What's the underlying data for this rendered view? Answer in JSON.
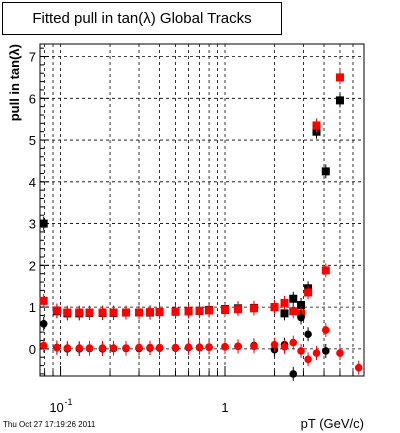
{
  "title": "Fitted pull in tan(λ)  Global Tracks",
  "timestamp": "Thu Oct 27 17:19:26 2011",
  "chart_data": {
    "type": "scatter",
    "x_scale": "log",
    "xlim": [
      0.075,
      7.0
    ],
    "ylim": [
      -0.65,
      7.3
    ],
    "xlabel": "pT (GeV/c)",
    "ylabel": "pull in tan(λ)",
    "grid": true,
    "x_tick_labels": [
      {
        "value": 0.1,
        "label": "10",
        "exp": "-1"
      },
      {
        "value": 1,
        "label": "1",
        "exp": ""
      }
    ],
    "y_ticks": [
      0,
      1,
      2,
      3,
      4,
      5,
      6,
      7
    ],
    "x_grid_values": [
      0.08,
      0.09,
      0.1,
      0.2,
      0.3,
      0.4,
      0.5,
      0.6,
      0.7,
      0.8,
      0.9,
      1,
      2,
      3,
      4,
      5,
      6
    ],
    "colors": {
      "black": "#000000",
      "red": "#ff0000"
    },
    "series": [
      {
        "color": "#000000",
        "marker": "square",
        "points": [
          [
            0.079,
            3.0
          ],
          [
            0.095,
            0.9
          ],
          [
            0.11,
            0.85
          ],
          [
            0.13,
            0.85
          ],
          [
            0.15,
            0.86
          ],
          [
            0.18,
            0.86
          ],
          [
            0.21,
            0.86
          ],
          [
            0.25,
            0.87
          ],
          [
            0.3,
            0.87
          ],
          [
            0.35,
            0.87
          ],
          [
            0.4,
            0.88
          ],
          [
            0.5,
            0.89
          ],
          [
            0.6,
            0.9
          ],
          [
            0.7,
            0.91
          ],
          [
            0.8,
            0.93
          ],
          [
            1.0,
            0.95
          ],
          [
            1.2,
            0.97
          ],
          [
            1.5,
            0.98
          ],
          [
            2.0,
            1.0
          ],
          [
            2.3,
            0.85
          ],
          [
            2.6,
            1.2
          ],
          [
            2.9,
            1.05
          ],
          [
            3.2,
            1.45
          ],
          [
            3.6,
            5.2
          ],
          [
            4.1,
            4.25
          ],
          [
            5.0,
            5.95
          ]
        ]
      },
      {
        "color": "#ff0000",
        "marker": "square",
        "points": [
          [
            0.079,
            1.15
          ],
          [
            0.095,
            0.92
          ],
          [
            0.11,
            0.87
          ],
          [
            0.13,
            0.87
          ],
          [
            0.15,
            0.87
          ],
          [
            0.18,
            0.87
          ],
          [
            0.21,
            0.87
          ],
          [
            0.25,
            0.87
          ],
          [
            0.3,
            0.87
          ],
          [
            0.35,
            0.88
          ],
          [
            0.4,
            0.88
          ],
          [
            0.5,
            0.89
          ],
          [
            0.6,
            0.9
          ],
          [
            0.7,
            0.91
          ],
          [
            0.8,
            0.92
          ],
          [
            1.0,
            0.93
          ],
          [
            1.2,
            0.95
          ],
          [
            1.5,
            0.97
          ],
          [
            2.0,
            1.0
          ],
          [
            2.3,
            1.1
          ],
          [
            2.6,
            0.9
          ],
          [
            2.9,
            0.85
          ],
          [
            3.2,
            1.35
          ],
          [
            3.6,
            5.35
          ],
          [
            4.1,
            1.88
          ],
          [
            5.0,
            6.5
          ]
        ]
      },
      {
        "color": "#000000",
        "marker": "circle",
        "points": [
          [
            0.079,
            0.6
          ],
          [
            0.095,
            0.03
          ],
          [
            0.11,
            0.0
          ],
          [
            0.13,
            0.0
          ],
          [
            0.15,
            0.01
          ],
          [
            0.18,
            0.0
          ],
          [
            0.21,
            0.01
          ],
          [
            0.25,
            0.01
          ],
          [
            0.3,
            0.01
          ],
          [
            0.35,
            0.02
          ],
          [
            0.4,
            0.02
          ],
          [
            0.5,
            0.02
          ],
          [
            0.6,
            0.03
          ],
          [
            0.7,
            0.03
          ],
          [
            0.8,
            0.04
          ],
          [
            1.0,
            0.05
          ],
          [
            1.2,
            0.06
          ],
          [
            1.5,
            0.08
          ],
          [
            2.0,
            -0.02
          ],
          [
            2.3,
            0.1
          ],
          [
            2.6,
            -0.6
          ],
          [
            2.9,
            0.75
          ],
          [
            3.2,
            0.35
          ],
          [
            4.1,
            -0.05
          ]
        ]
      },
      {
        "color": "#ff0000",
        "marker": "circle",
        "points": [
          [
            0.079,
            0.08
          ],
          [
            0.095,
            0.03
          ],
          [
            0.11,
            0.02
          ],
          [
            0.13,
            0.02
          ],
          [
            0.15,
            0.02
          ],
          [
            0.18,
            0.02
          ],
          [
            0.21,
            0.02
          ],
          [
            0.25,
            0.02
          ],
          [
            0.3,
            0.03
          ],
          [
            0.35,
            0.03
          ],
          [
            0.4,
            0.03
          ],
          [
            0.5,
            0.03
          ],
          [
            0.6,
            0.04
          ],
          [
            0.7,
            0.04
          ],
          [
            0.8,
            0.04
          ],
          [
            1.0,
            0.05
          ],
          [
            1.2,
            0.06
          ],
          [
            1.5,
            0.06
          ],
          [
            2.0,
            0.1
          ],
          [
            2.3,
            0.05
          ],
          [
            2.6,
            0.15
          ],
          [
            2.9,
            -0.05
          ],
          [
            3.2,
            -0.25
          ],
          [
            3.6,
            -0.1
          ],
          [
            4.1,
            0.45
          ],
          [
            5.0,
            -0.1
          ],
          [
            6.5,
            -0.45
          ]
        ]
      }
    ]
  }
}
